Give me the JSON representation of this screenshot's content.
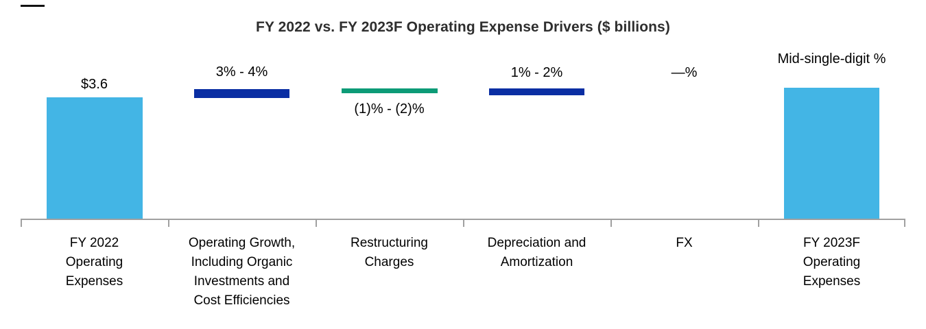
{
  "colors": {
    "light_blue": "#43B5E5",
    "navy": "#0A2EA3",
    "green": "#0D9B77",
    "axis_gray": "#A0A0A0",
    "title_text": "#2E2E2E",
    "label_text": "#000000"
  },
  "chart_data": {
    "type": "bar",
    "subtype": "waterfall-bridge",
    "title": "FY 2022 vs. FY 2023F Operating Expense Drivers ($ billions)",
    "legend": "none",
    "gridlines": false,
    "y_axis": "hidden",
    "baseline": "x-axis at zero",
    "categories": [
      "FY 2022 Operating Expenses",
      "Operating Growth, Including Organic Investments and Cost Efficiencies",
      "Restructuring Charges",
      "Depreciation and Amortization",
      "FX",
      "FY 2023F Operating Expenses"
    ],
    "value_labels": [
      "$3.6",
      "3% - 4%",
      "(1)% - (2)%",
      "1% - 2%",
      "—%",
      "Mid-single-digit %"
    ],
    "columns": [
      {
        "category_lines": "FY 2022\nOperating\nExpenses",
        "value_label": "$3.6",
        "numeric_value_billions": 3.6,
        "bar_type": "column",
        "color": "#43B5E5",
        "value_label_position": "above"
      },
      {
        "category_lines": "Operating Growth,\nIncluding Organic\nInvestments and\nCost Efficiencies",
        "value_label": "3% - 4%",
        "pct_range": [
          3,
          4
        ],
        "bar_type": "connector-segment",
        "color": "#0A2EA3",
        "value_label_position": "above"
      },
      {
        "category_lines": "Restructuring\nCharges",
        "value_label": "(1)% - (2)%",
        "pct_range": [
          -1,
          -2
        ],
        "bar_type": "connector-segment",
        "color": "#0D9B77",
        "value_label_position": "below"
      },
      {
        "category_lines": "Depreciation and\nAmortization",
        "value_label": "1% - 2%",
        "pct_range": [
          1,
          2
        ],
        "bar_type": "connector-segment",
        "color": "#0A2EA3",
        "value_label_position": "above"
      },
      {
        "category_lines": "FX",
        "value_label": "—%",
        "pct_range": [
          0,
          0
        ],
        "bar_type": "none",
        "color": null,
        "value_label_position": "above"
      },
      {
        "category_lines": "FY 2023F\nOperating\nExpenses",
        "value_label": "Mid-single-digit %",
        "bar_type": "column",
        "color": "#43B5E5",
        "value_label_position": "above"
      }
    ]
  }
}
